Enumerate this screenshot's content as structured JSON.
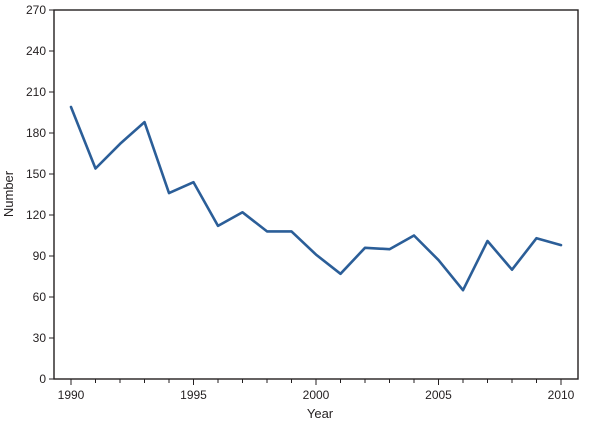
{
  "chart_data": {
    "type": "line",
    "title": "",
    "xlabel": "Year",
    "ylabel": "Number",
    "xlim": [
      1990,
      2010
    ],
    "ylim": [
      0,
      270
    ],
    "x_ticks": [
      1990,
      1995,
      2000,
      2005,
      2010
    ],
    "y_ticks": [
      0,
      30,
      60,
      90,
      120,
      150,
      180,
      210,
      240,
      270
    ],
    "grid": false,
    "legend": "none",
    "series": [
      {
        "color": "#2b5e98",
        "x": [
          1990,
          1991,
          1992,
          1993,
          1994,
          1995,
          1996,
          1997,
          1998,
          1999,
          2000,
          2001,
          2002,
          2003,
          2004,
          2005,
          2006,
          2007,
          2008,
          2009,
          2010
        ],
        "values": [
          199,
          154,
          172,
          188,
          136,
          144,
          112,
          122,
          108,
          108,
          91,
          77,
          96,
          95,
          105,
          87,
          65,
          101,
          80,
          103,
          98
        ]
      }
    ]
  }
}
